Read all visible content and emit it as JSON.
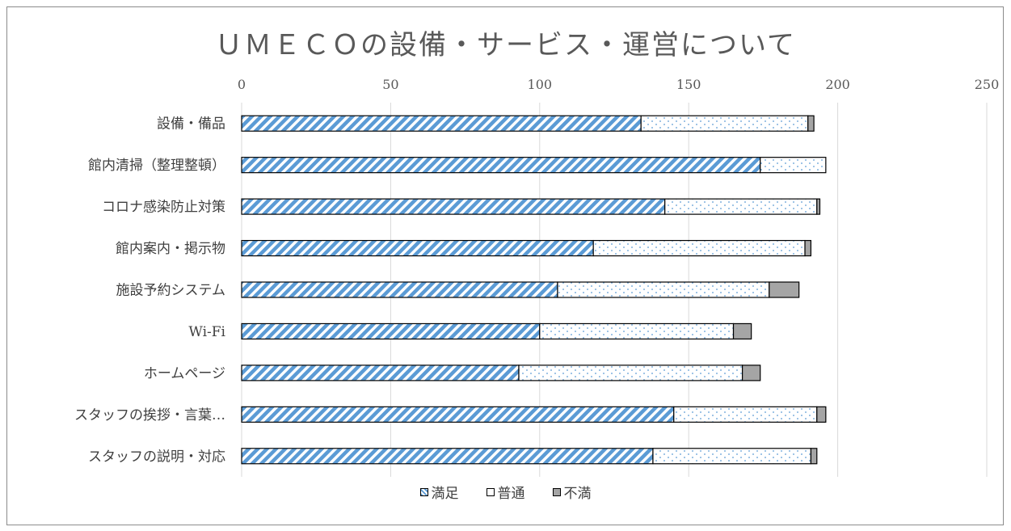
{
  "chart_data": {
    "type": "bar",
    "orientation": "horizontal",
    "stacked": true,
    "title": "ＵＭＥＣＯの設備・サービス・運営について",
    "categories": [
      "設備・備品",
      "館内清掃（整理整頓）",
      "コロナ感染防止対策",
      "館内案内・掲示物",
      "施設予約システム",
      "Wi-Fi",
      "ホームページ",
      "スタッフの挨拶・言葉…",
      "スタッフの説明・対応"
    ],
    "series": [
      {
        "name": "満足",
        "values": [
          134,
          174,
          142,
          118,
          106,
          100,
          93,
          145,
          138
        ]
      },
      {
        "name": "普通",
        "values": [
          56,
          22,
          51,
          71,
          71,
          65,
          75,
          48,
          53
        ]
      },
      {
        "name": "不満",
        "values": [
          2,
          0,
          1,
          2,
          10,
          6,
          6,
          3,
          2
        ]
      }
    ],
    "xlim": [
      0,
      250
    ],
    "xticks": [
      "0",
      "50",
      "100",
      "150",
      "200",
      "250"
    ],
    "x_axis_position": "top",
    "grid": true,
    "legend_position": "bottom"
  },
  "colors": {
    "satisfied": "#5b9bd5",
    "neutral_dots": "#5b9bd5",
    "dissatisfied": "#a5a5a5",
    "grid": "#d9d9d9",
    "border": "#000000"
  }
}
